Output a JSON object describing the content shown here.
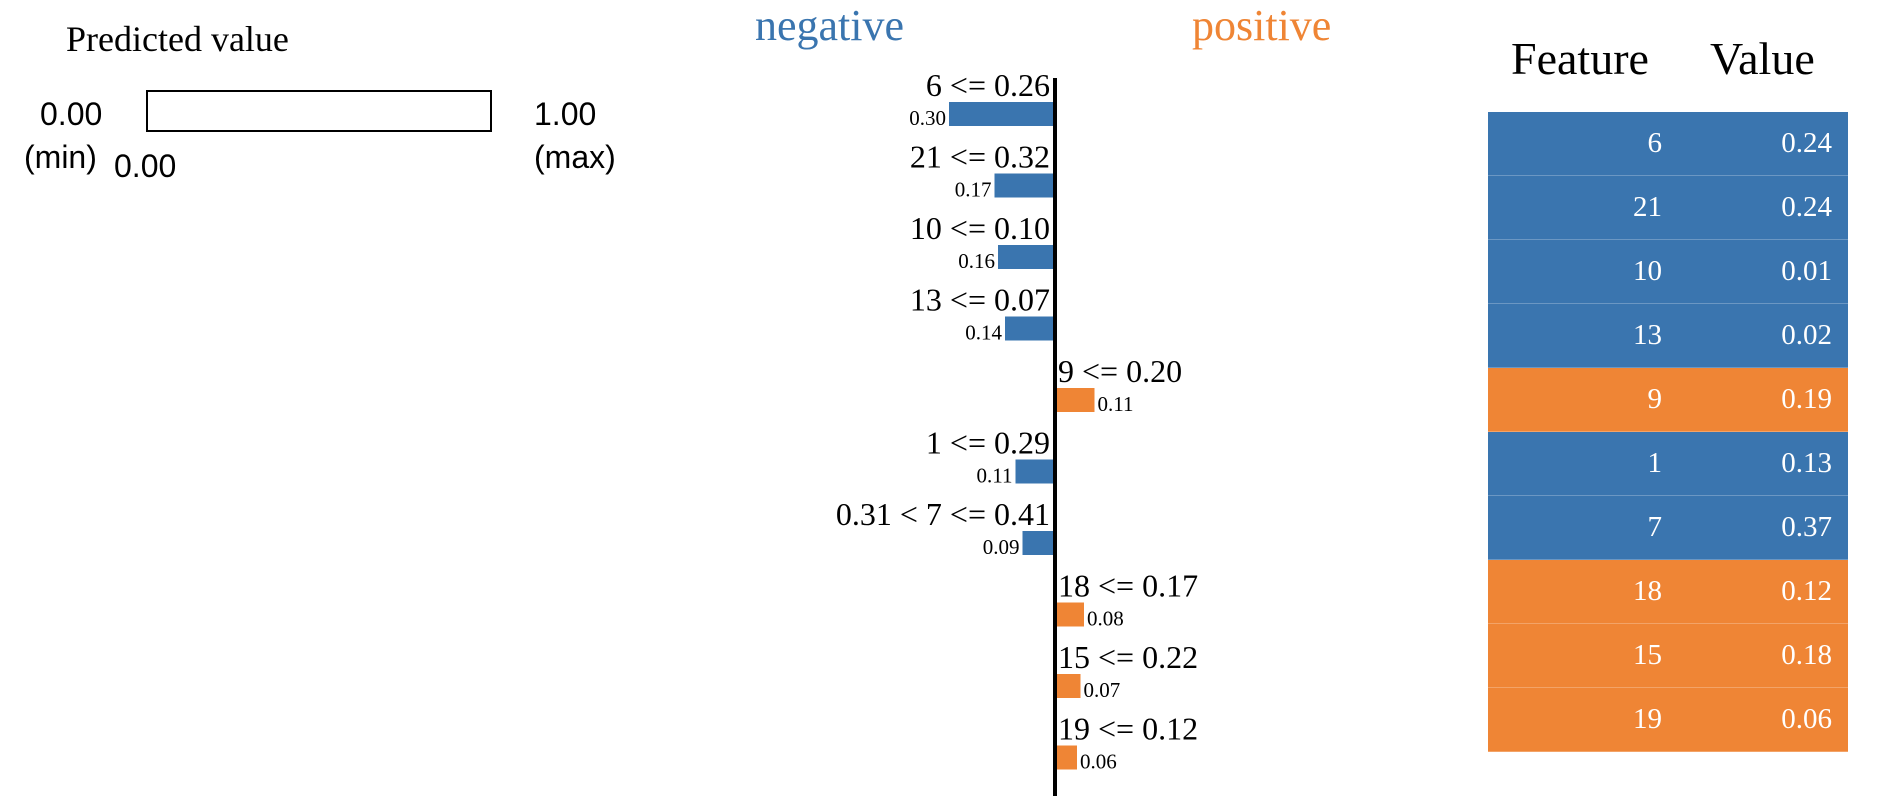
{
  "predicted": {
    "title": "Predicted value",
    "min_value": "0.00",
    "min_label": "(min)",
    "max_value": "1.00",
    "max_label": "(max)",
    "current_value": "0.00",
    "fraction": 0.0
  },
  "colors": {
    "negative": "#3a75af",
    "positive": "#ef8535",
    "axis": "#000000"
  },
  "chart_data": {
    "type": "bar",
    "orientation": "horizontal",
    "side_labels": {
      "negative": "negative",
      "positive": "positive"
    },
    "bars": [
      {
        "label": "6 <= 0.26",
        "value": 0.3,
        "value_label": "0.30",
        "sign": "negative"
      },
      {
        "label": "21 <= 0.32",
        "value": 0.17,
        "value_label": "0.17",
        "sign": "negative"
      },
      {
        "label": "10 <= 0.10",
        "value": 0.16,
        "value_label": "0.16",
        "sign": "negative"
      },
      {
        "label": "13 <= 0.07",
        "value": 0.14,
        "value_label": "0.14",
        "sign": "negative"
      },
      {
        "label": "9 <= 0.20",
        "value": 0.11,
        "value_label": "0.11",
        "sign": "positive"
      },
      {
        "label": "1 <= 0.29",
        "value": 0.11,
        "value_label": "0.11",
        "sign": "negative"
      },
      {
        "label": "0.31 < 7 <= 0.41",
        "value": 0.09,
        "value_label": "0.09",
        "sign": "negative"
      },
      {
        "label": "18 <= 0.17",
        "value": 0.08,
        "value_label": "0.08",
        "sign": "positive"
      },
      {
        "label": "15 <= 0.22",
        "value": 0.07,
        "value_label": "0.07",
        "sign": "positive"
      },
      {
        "label": "19 <= 0.12",
        "value": 0.06,
        "value_label": "0.06",
        "sign": "positive"
      }
    ]
  },
  "table": {
    "headers": {
      "feature": "Feature",
      "value": "Value"
    },
    "rows": [
      {
        "feature": "6",
        "value": "0.24",
        "sign": "negative"
      },
      {
        "feature": "21",
        "value": "0.24",
        "sign": "negative"
      },
      {
        "feature": "10",
        "value": "0.01",
        "sign": "negative"
      },
      {
        "feature": "13",
        "value": "0.02",
        "sign": "negative"
      },
      {
        "feature": "9",
        "value": "0.19",
        "sign": "positive"
      },
      {
        "feature": "1",
        "value": "0.13",
        "sign": "negative"
      },
      {
        "feature": "7",
        "value": "0.37",
        "sign": "negative"
      },
      {
        "feature": "18",
        "value": "0.12",
        "sign": "positive"
      },
      {
        "feature": "15",
        "value": "0.18",
        "sign": "positive"
      },
      {
        "feature": "19",
        "value": "0.06",
        "sign": "positive"
      }
    ]
  }
}
